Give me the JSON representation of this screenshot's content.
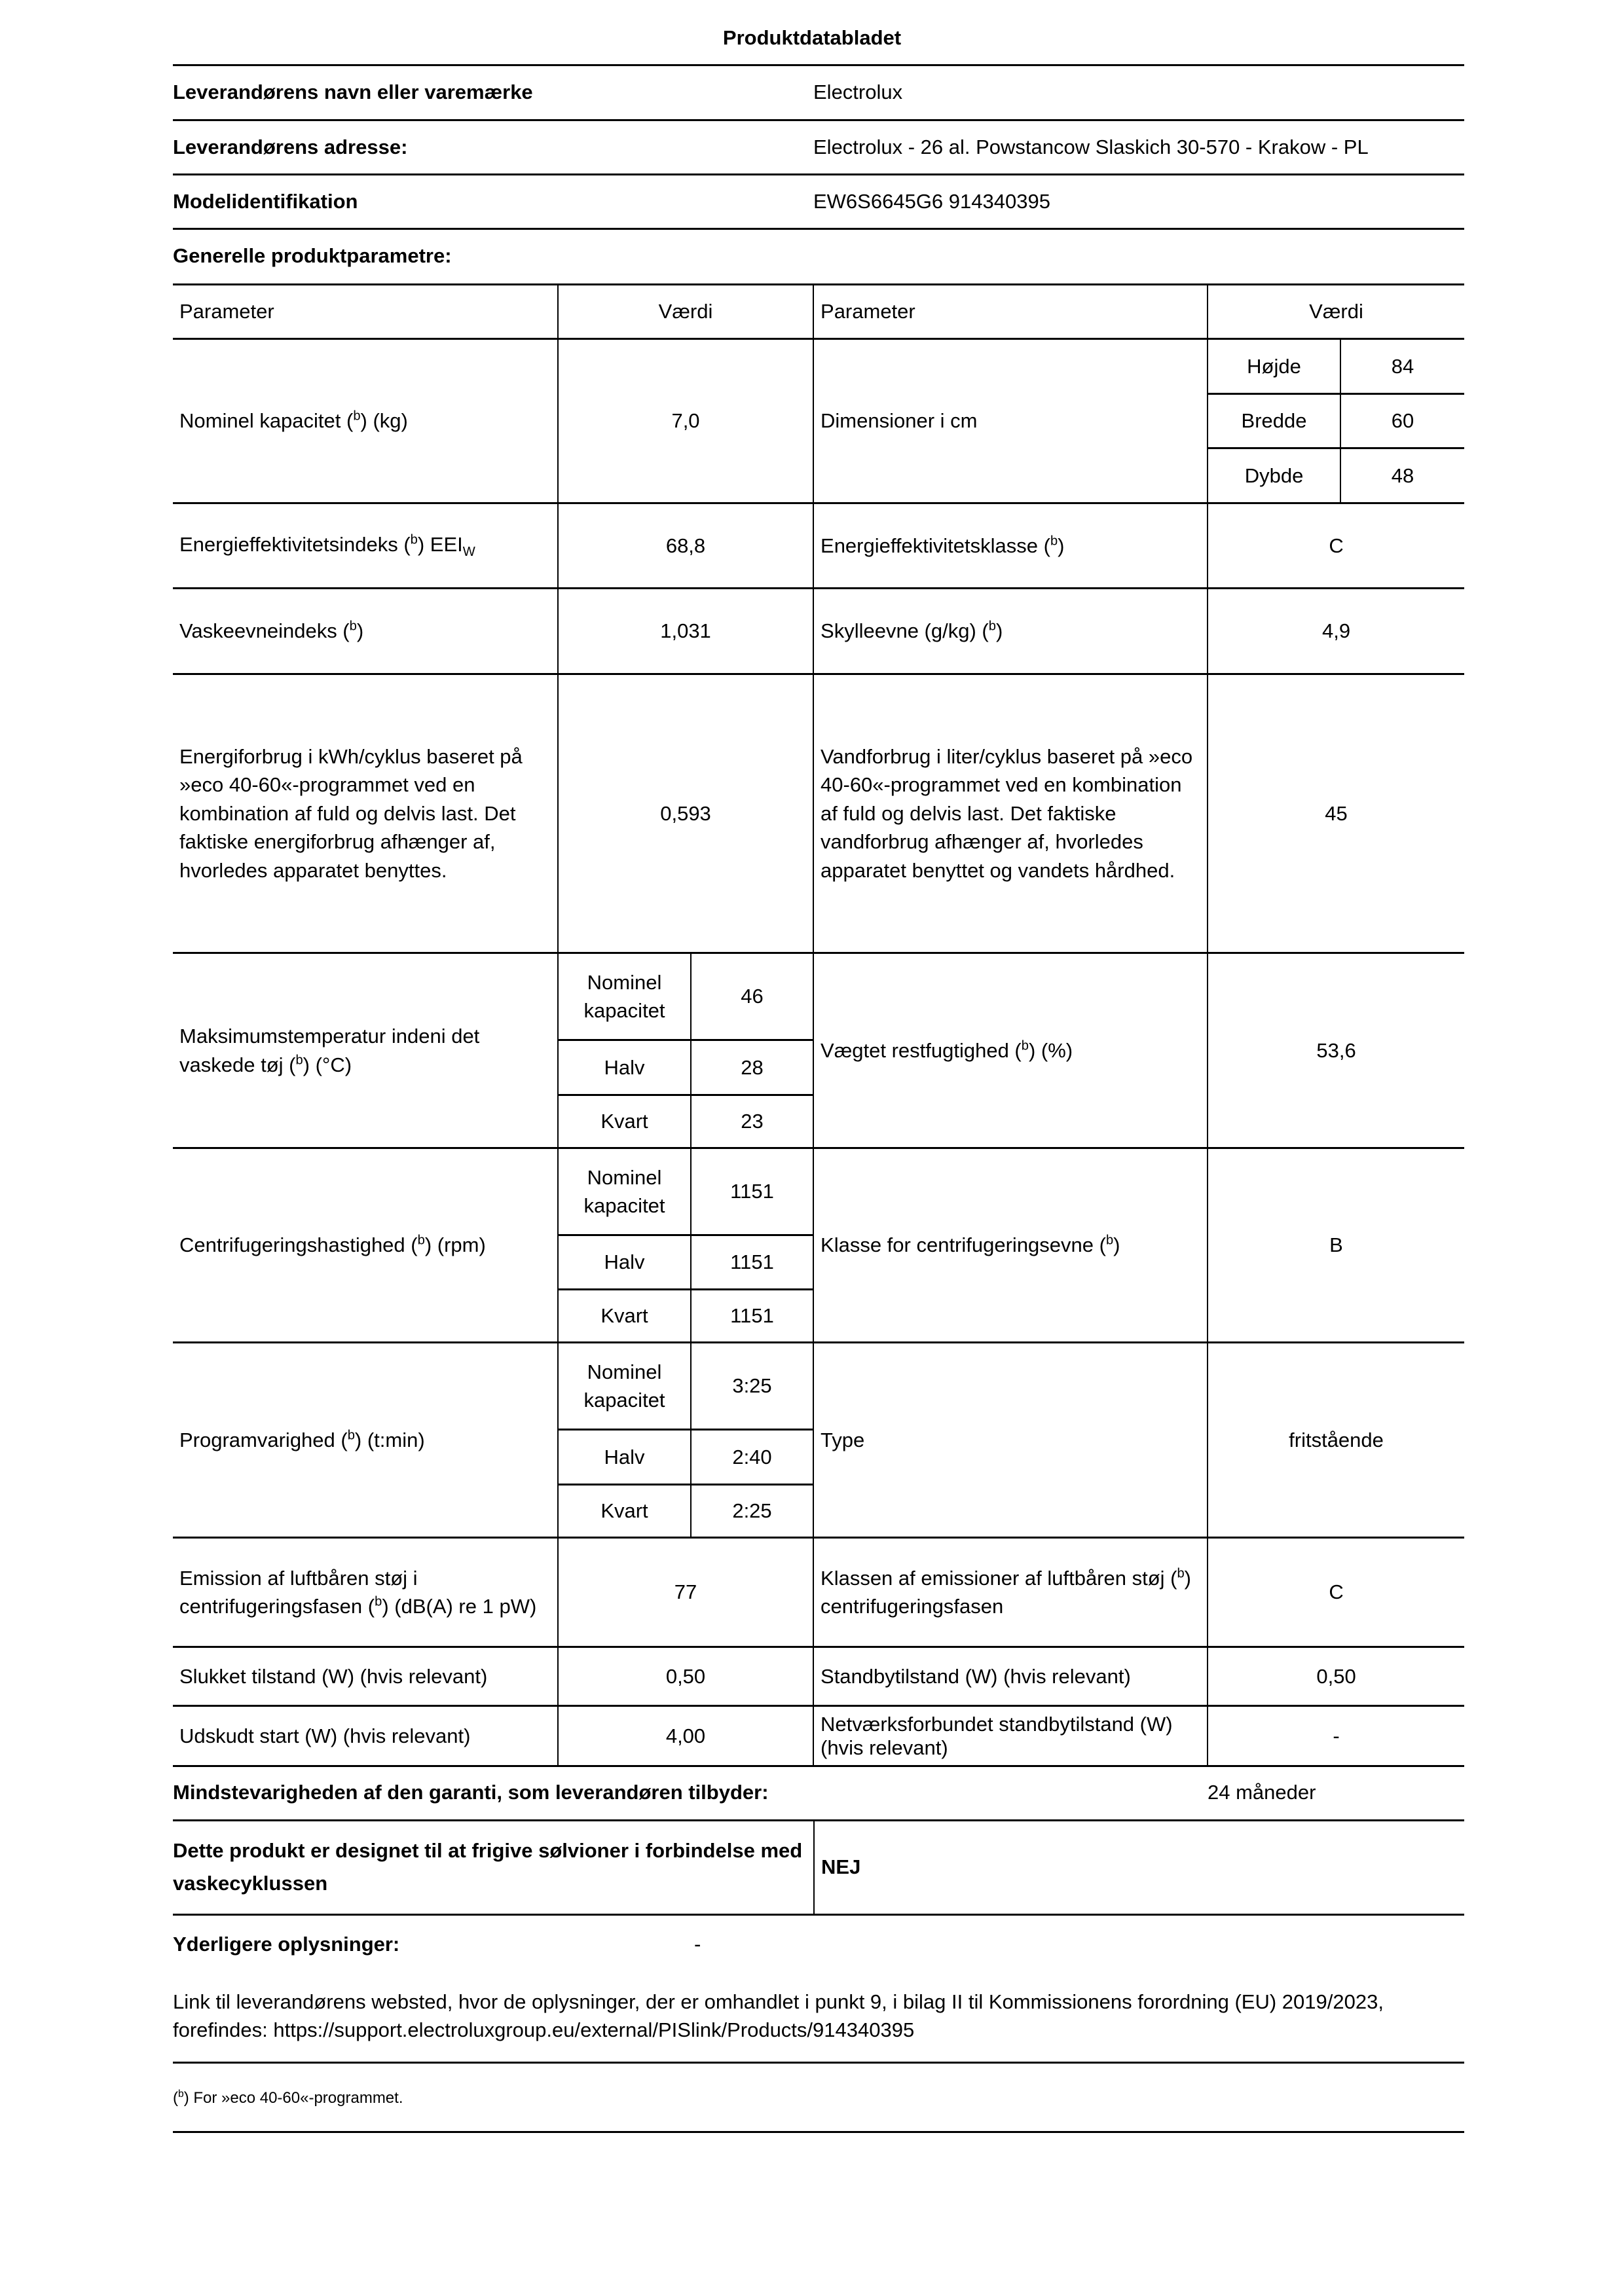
{
  "title": "Produktdatabladet",
  "supplier": {
    "name_label": "Leverandørens navn eller varemærke",
    "name_value": "Electrolux",
    "address_label": "Leverandørens adresse:",
    "address_value": "Electrolux - 26 al. Powstancow Slaskich 30-570 - Krakow - PL",
    "model_label": "Modelidentifikation",
    "model_value": "EW6S6645G6 914340395"
  },
  "general_heading": "Generelle produktparametre:",
  "table": {
    "h_param": "Parameter",
    "h_value": "Værdi",
    "capacity": {
      "pre": "Nominel kapacitet (",
      "sup": "b",
      "post": ") (kg)",
      "value": "7,0"
    },
    "dimensions": {
      "label": "Dimensioner i cm",
      "rows": [
        {
          "k": "Højde",
          "v": "84"
        },
        {
          "k": "Bredde",
          "v": "60"
        },
        {
          "k": "Dybde",
          "v": "48"
        }
      ]
    },
    "eei": {
      "pre": "Energieffektivitetsindeks (",
      "sup": "b",
      "post": ") EEI",
      "sub": "W",
      "value": "68,8"
    },
    "energy_class": {
      "pre": "Energieffektivitetsklasse (",
      "sup": "b",
      "post": ")",
      "value": "C"
    },
    "wash": {
      "pre": "Vaskeevneindeks (",
      "sup": "b",
      "post": ")",
      "value": "1,031"
    },
    "rinse": {
      "pre": "Skylleevne (g/kg) (",
      "sup": "b",
      "post": ")",
      "value": "4,9"
    },
    "energy": {
      "label": "Energiforbrug i kWh/cyklus baseret på »eco 40-60«-programmet ved en kombination af fuld og delvis last. Det faktiske energiforbrug afhænger af, hvorledes apparatet benyttes.",
      "value": "0,593"
    },
    "water": {
      "label": "Vandforbrug i liter/cyklus baseret på »eco 40-60«-programmet ved en kombination af fuld og delvis last. Det faktiske vandforbrug afhænger af, hvorledes apparatet benyttet og vandets hårdhed.",
      "value": "45"
    },
    "load_labels": {
      "full": "Nominel kapacitet",
      "half": "Halv",
      "quarter": "Kvart"
    },
    "max_temp": {
      "pre": "Maksimumstemperatur indeni det vaskede tøj (",
      "sup": "b",
      "post": ") (°C)",
      "full": "46",
      "half": "28",
      "quarter": "23"
    },
    "moisture": {
      "pre": "Vægtet restfugtighed (",
      "sup": "b",
      "post": ") (%)",
      "value": "53,6"
    },
    "spin": {
      "pre": "Centrifugeringshastighed (",
      "sup": "b",
      "post": ") (rpm)",
      "full": "1151",
      "half": "1151",
      "quarter": "1151"
    },
    "spin_class": {
      "pre": "Klasse for centrifugeringsevne (",
      "sup": "b",
      "post": ")",
      "value": "B"
    },
    "duration": {
      "pre": "Programvarighed (",
      "sup": "b",
      "post": ") (t:min)",
      "full": "3:25",
      "half": "2:40",
      "quarter": "2:25"
    },
    "type": {
      "label": "Type",
      "value": "fritstående"
    },
    "noise": {
      "pre": "Emission af luftbåren støj i centrifugeringsfasen (",
      "sup": "b",
      "post": ") (dB(A) re 1 pW)",
      "value": "77"
    },
    "noise_class": {
      "pre": "Klassen af emissioner af luftbåren støj (",
      "sup": "b",
      "post": ") centrifugeringsfasen",
      "value": "C"
    },
    "off": {
      "label": "Slukket tilstand (W) (hvis relevant)",
      "value": "0,50"
    },
    "standby": {
      "label": "Standbytilstand (W) (hvis relevant)",
      "value": "0,50"
    },
    "delay": {
      "label": "Udskudt start (W) (hvis relevant)",
      "value": "4,00"
    },
    "network": {
      "label": "Netværksforbundet standbytilstand (W) (hvis relevant)",
      "value": "-"
    }
  },
  "warranty": {
    "label": "Mindstevarigheden af den garanti, som leverandøren tilbyder:",
    "value": "24 måneder"
  },
  "silver": {
    "label": "Dette produkt er designet til at frigive sølvioner i forbindelse med vaskecyklussen",
    "value": "NEJ"
  },
  "additional": {
    "label": "Yderligere oplysninger:",
    "value": "-"
  },
  "link_text": "Link til leverandørens websted, hvor de oplysninger, der er omhandlet i punkt 9, i bilag II til Kommissionens forordning (EU) 2019/2023, forefindes: https://support.electroluxgroup.eu/external/PISlink/Products/914340395",
  "footnote": {
    "sup": "b",
    "text": ") For »eco 40-60«-programmet."
  }
}
